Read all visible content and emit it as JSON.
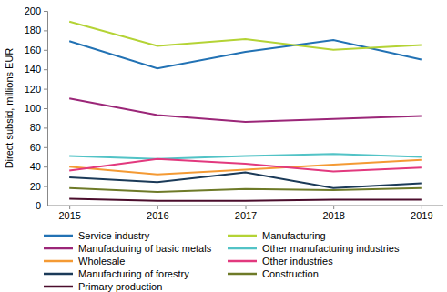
{
  "chart_data": {
    "type": "line",
    "y_label": "Direct subsid, millions EUR",
    "categories": [
      "2015",
      "2016",
      "2017",
      "2018",
      "2019"
    ],
    "series": [
      {
        "name": "Service industry",
        "color": "#2272b4",
        "values": [
          169,
          141,
          158,
          170,
          150
        ]
      },
      {
        "name": "Manufacturing",
        "color": "#b4d335",
        "values": [
          189,
          164,
          171,
          160,
          165
        ]
      },
      {
        "name": "Manufacturing of basic metals",
        "color": "#9b2678",
        "values": [
          110,
          93,
          86,
          89,
          92
        ]
      },
      {
        "name": "Other manufacturing industries",
        "color": "#52c3c6",
        "values": [
          51,
          48,
          51,
          53,
          50
        ]
      },
      {
        "name": "Wholesale",
        "color": "#f49a34",
        "values": [
          40,
          32,
          37,
          42,
          47
        ]
      },
      {
        "name": "Other industries",
        "color": "#e2397e",
        "values": [
          36,
          48,
          43,
          35,
          39
        ]
      },
      {
        "name": "Manufacturing of forestry",
        "color": "#1b3a58",
        "values": [
          29,
          24,
          34,
          18,
          23
        ]
      },
      {
        "name": "Construction",
        "color": "#6e7a28",
        "values": [
          18,
          14,
          17,
          16,
          18
        ]
      },
      {
        "name": "Primary production",
        "color": "#4b0d2c",
        "values": [
          7,
          5,
          5,
          6,
          6
        ]
      }
    ],
    "ylim": [
      0,
      200
    ],
    "yticks": [
      0,
      20,
      40,
      60,
      80,
      100,
      120,
      140,
      160,
      180,
      200
    ],
    "grid": false,
    "legend": "bottom"
  }
}
